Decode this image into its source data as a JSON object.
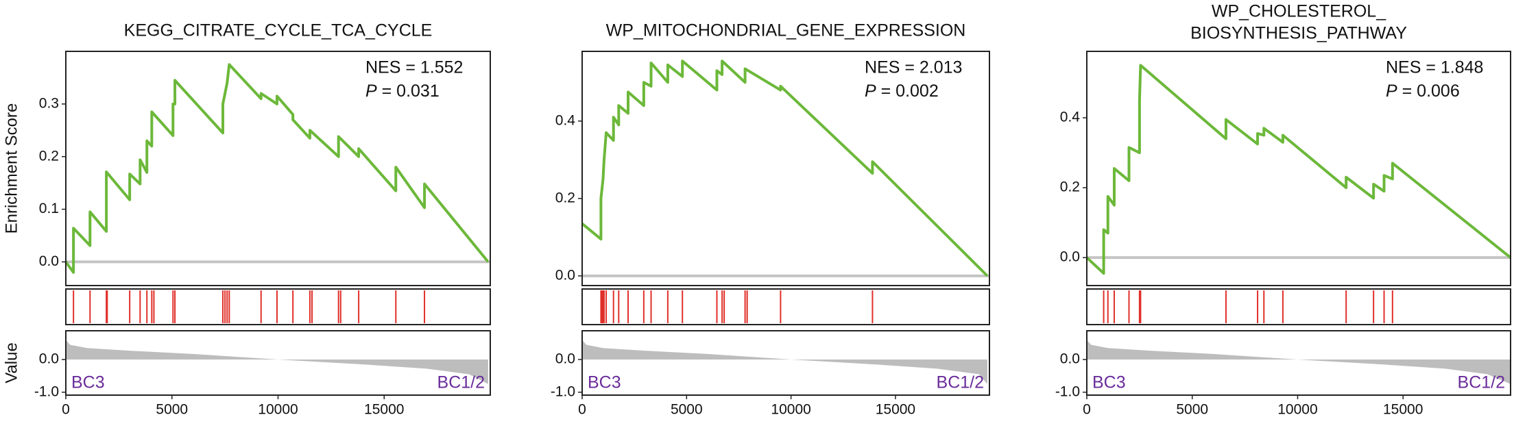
{
  "chart_data": [
    {
      "type": "line",
      "title": "KEGG_CITRATE_CYCLE_TCA_CYCLE",
      "ylabel": "Enrichment Score",
      "annotations": [
        "NES = 1.552",
        "P = 0.031"
      ],
      "x": [
        0,
        360,
        360,
        1140,
        1140,
        1910,
        1910,
        3010,
        3010,
        3500,
        3500,
        3820,
        3820,
        4050,
        4050,
        5050,
        5050,
        5140,
        5140,
        7400,
        7400,
        7500,
        7600,
        7700,
        9200,
        9200,
        9950,
        9950,
        10700,
        10700,
        11500,
        11500,
        12850,
        12850,
        13800,
        13800,
        15550,
        15550,
        16900,
        16900,
        19900
      ],
      "values": [
        0,
        -0.02,
        0.064,
        0.031,
        0.095,
        0.058,
        0.171,
        0.118,
        0.167,
        0.148,
        0.194,
        0.17,
        0.23,
        0.22,
        0.285,
        0.24,
        0.3,
        0.3,
        0.345,
        0.245,
        0.3,
        0.32,
        0.34,
        0.375,
        0.31,
        0.32,
        0.3,
        0.315,
        0.28,
        0.27,
        0.235,
        0.25,
        0.2,
        0.238,
        0.2,
        0.215,
        0.135,
        0.18,
        0.103,
        0.148,
        0
      ],
      "color": "#6cb83a",
      "xlim": [
        0,
        20000
      ],
      "xticks": [
        0,
        5000,
        10000,
        15000
      ],
      "ylim": [
        -0.045,
        0.4
      ],
      "yticks": [
        {
          "value": 0,
          "label": "0.0"
        },
        0.1,
        0.2,
        0.3
      ],
      "hits": [
        360,
        1140,
        1910,
        1950,
        3010,
        3500,
        3820,
        4050,
        4150,
        5050,
        5140,
        7400,
        7500,
        7600,
        7700,
        9200,
        9950,
        10700,
        11500,
        11600,
        12850,
        12950,
        13800,
        15550,
        16900
      ],
      "hit_color": "#e0302a",
      "metric": {
        "ylabel": "Value",
        "x": [
          0,
          200,
          1000,
          3000,
          6000,
          10000,
          14000,
          17000,
          19000,
          19900
        ],
        "values": [
          0.6,
          0.45,
          0.35,
          0.27,
          0.17,
          0,
          -0.15,
          -0.28,
          -0.45,
          -0.75
        ],
        "ylim": [
          -1.09,
          0.88
        ],
        "yticks": [
          {
            "value": -1,
            "label": "-1.0"
          },
          {
            "value": 0,
            "label": "0.0"
          }
        ],
        "color": "#bdbdbd"
      },
      "group_labels": [
        "BC3",
        "BC1/2"
      ],
      "group_color": "#6a2c9a"
    },
    {
      "type": "line",
      "title": "WP_MITOCHONDRIAL_GENE_EXPRESSION",
      "annotations": [
        "NES = 2.013",
        "P = 0.002"
      ],
      "x": [
        0,
        900,
        900,
        1000,
        1050,
        1150,
        1500,
        1500,
        1750,
        1750,
        2200,
        2200,
        2950,
        2950,
        3300,
        3300,
        4100,
        4100,
        4800,
        4800,
        6450,
        6450,
        6700,
        6700,
        7800,
        7800,
        9500,
        9500,
        13900,
        13900,
        19400
      ],
      "values": [
        0.135,
        0.095,
        0.2,
        0.25,
        0.3,
        0.37,
        0.35,
        0.41,
        0.39,
        0.44,
        0.42,
        0.475,
        0.44,
        0.5,
        0.49,
        0.55,
        0.5,
        0.545,
        0.515,
        0.555,
        0.48,
        0.53,
        0.52,
        0.555,
        0.5,
        0.535,
        0.48,
        0.49,
        0.265,
        0.295,
        0
      ],
      "color": "#6cb83a",
      "xlim": [
        0,
        19500
      ],
      "xticks": [
        0,
        5000,
        10000,
        15000
      ],
      "ylim": [
        -0.025,
        0.58
      ],
      "yticks": [
        {
          "value": 0,
          "label": "0.0"
        },
        0.2,
        0.4
      ],
      "hits": [
        900,
        950,
        1000,
        1050,
        1150,
        1500,
        1750,
        2200,
        2950,
        3300,
        4100,
        4800,
        6450,
        6700,
        6800,
        7800,
        7900,
        9500,
        13900
      ],
      "hit_color": "#e0302a",
      "metric": {
        "x": [
          0,
          200,
          1000,
          3000,
          6000,
          10000,
          14000,
          17000,
          19000,
          19400
        ],
        "values": [
          0.6,
          0.45,
          0.35,
          0.27,
          0.17,
          0,
          -0.15,
          -0.28,
          -0.45,
          -0.75
        ],
        "ylim": [
          -1.09,
          0.88
        ],
        "yticks": [
          {
            "value": -1,
            "label": "-1.0"
          },
          {
            "value": 0,
            "label": "0.0"
          }
        ],
        "color": "#bdbdbd"
      },
      "group_labels": [
        "BC3",
        "BC1/2"
      ],
      "group_color": "#6a2c9a"
    },
    {
      "type": "line",
      "title": [
        "WP_CHOLESTEROL_",
        "BIOSYNTHESIS_PATHWAY"
      ],
      "annotations": [
        "NES = 1.848",
        "P = 0.006"
      ],
      "x": [
        0,
        800,
        800,
        1000,
        1000,
        1300,
        1300,
        2000,
        2000,
        2500,
        2500,
        2550,
        6600,
        6600,
        8100,
        8100,
        8400,
        8400,
        9300,
        9300,
        12300,
        12300,
        13600,
        13600,
        14100,
        14100,
        14500,
        14500,
        20100
      ],
      "values": [
        0,
        -0.045,
        0.08,
        0.07,
        0.175,
        0.15,
        0.255,
        0.22,
        0.315,
        0.3,
        0.45,
        0.55,
        0.34,
        0.395,
        0.325,
        0.355,
        0.35,
        0.37,
        0.33,
        0.35,
        0.2,
        0.23,
        0.17,
        0.21,
        0.19,
        0.235,
        0.225,
        0.27,
        0
      ],
      "color": "#6cb83a",
      "xlim": [
        0,
        20100
      ],
      "xticks": [
        0,
        5000,
        10000,
        15000
      ],
      "ylim": [
        -0.08,
        0.59
      ],
      "yticks": [
        {
          "value": 0,
          "label": "0.0"
        },
        0.2,
        0.4
      ],
      "hits": [
        800,
        1000,
        1300,
        2000,
        2500,
        2550,
        6600,
        8100,
        8400,
        9300,
        12300,
        13600,
        14100,
        14500
      ],
      "hit_color": "#e0302a",
      "metric": {
        "x": [
          0,
          200,
          1000,
          3000,
          6000,
          10000,
          14000,
          17000,
          19000,
          20100
        ],
        "values": [
          0.6,
          0.45,
          0.35,
          0.27,
          0.17,
          0,
          -0.15,
          -0.28,
          -0.45,
          -0.75
        ],
        "ylim": [
          -1.09,
          0.88
        ],
        "yticks": [
          {
            "value": -1,
            "label": "-1.0"
          },
          {
            "value": 0,
            "label": "0.0"
          }
        ],
        "color": "#bdbdbd"
      },
      "group_labels": [
        "BC3",
        "BC1/2"
      ],
      "group_color": "#6a2c9a"
    }
  ]
}
